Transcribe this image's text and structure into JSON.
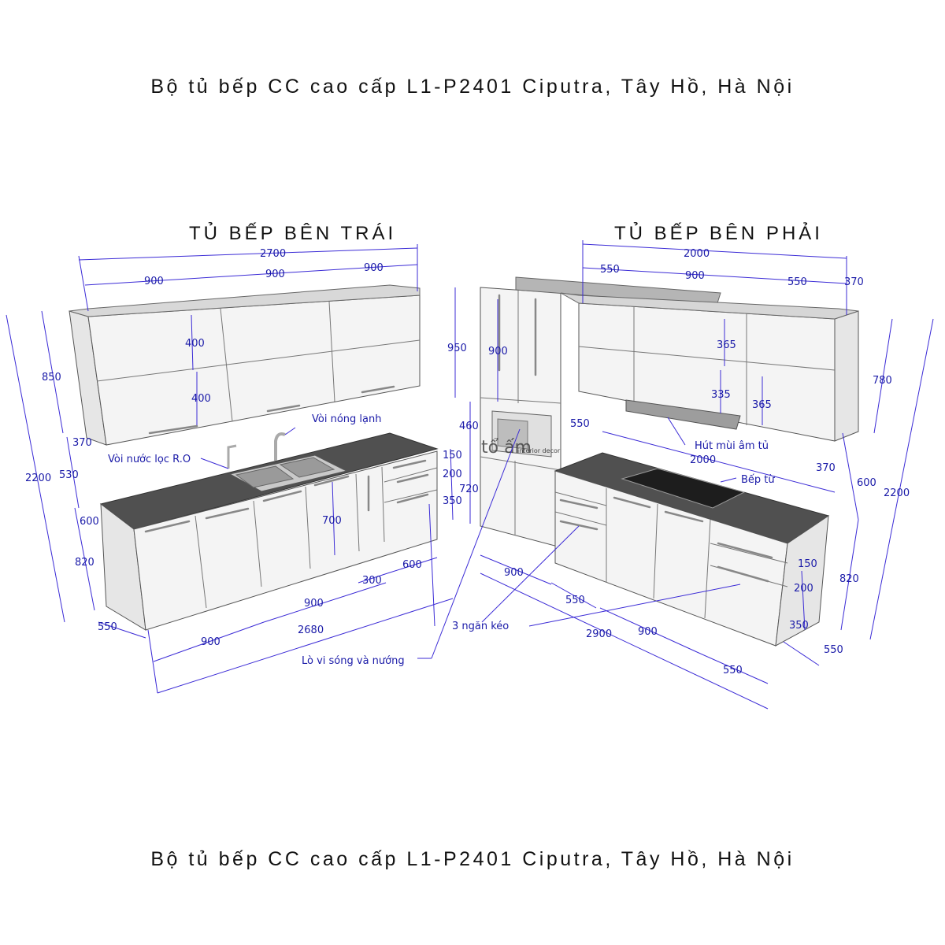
{
  "title_top": "Bộ tủ bếp CC cao cấp L1-P2401 Ciputra, Tây Hồ, Hà Nội",
  "title_bottom": "Bộ tủ bếp CC cao cấp L1-P2401 Ciputra, Tây Hồ, Hà Nội",
  "left": {
    "title": "TỦ BẾP BÊN TRÁI",
    "dims": {
      "upper_total": "2700",
      "upper_a": "900",
      "upper_b": "900",
      "upper_c": "900",
      "upper_door_top": "400",
      "upper_door_bot": "400",
      "h_850": "850",
      "d_370": "370",
      "gap_530": "530",
      "total_2200": "2200",
      "counter_600": "600",
      "base_820": "820",
      "depth_550": "550",
      "base_w1": "900",
      "base_w2": "900",
      "base_total": "2680",
      "w_300": "300",
      "w_600": "600",
      "h_700": "700",
      "dr_150": "150",
      "dr_200": "200",
      "dr_350": "350"
    },
    "labels": {
      "hot_cold_tap": "Vòi nóng lạnh",
      "ro_tap": "Vòi nước lọc R.O"
    }
  },
  "right": {
    "title": "TỦ BẾP BÊN PHẢI",
    "dims": {
      "upper_total": "2000",
      "upper_a": "550",
      "upper_b": "900",
      "upper_c": "550",
      "d_370_top": "370",
      "tall_950": "950",
      "tall_900": "900",
      "tall_460": "460",
      "tall_720": "720",
      "w_550": "550",
      "upper_365a": "365",
      "upper_335": "335",
      "upper_365b": "365",
      "h_780": "780",
      "total_2200": "2200",
      "counter_2000": "2000",
      "d_370_bot": "370",
      "gap_600": "600",
      "base_820": "820",
      "depth_550": "550",
      "dr_150": "150",
      "dr_200": "200",
      "dr_350": "350",
      "base_900a": "900",
      "base_550a": "550",
      "base_2900": "2900",
      "base_900b": "900",
      "base_550b": "550"
    },
    "labels": {
      "hood": "Hút mùi âm tủ",
      "hob": "Bếp từ",
      "drawers": "3 ngăn kéo",
      "microwave": "Lò vi sóng và nướng",
      "logo_main": "tổ ấm",
      "logo_sub": "interior decor"
    }
  }
}
